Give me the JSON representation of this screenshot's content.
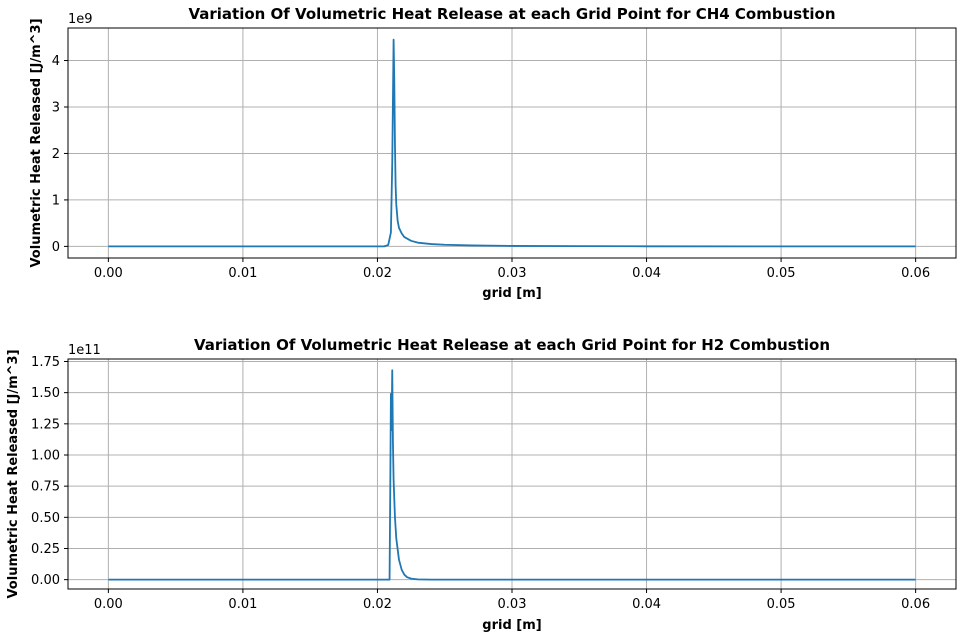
{
  "chart_data": [
    {
      "type": "line",
      "title": "Variation Of Volumetric Heat Release at each Grid Point for CH4 Combustion",
      "xlabel": "grid [m]",
      "ylabel": "Volumetric Heat Released [J/m^3]",
      "y_offset_label": "1e9",
      "xlim": [
        -0.003,
        0.063
      ],
      "ylim": [
        -0.25,
        4.7
      ],
      "xticks": [
        0.0,
        0.01,
        0.02,
        0.03,
        0.04,
        0.05,
        0.06
      ],
      "xtick_labels": [
        "0.00",
        "0.01",
        "0.02",
        "0.03",
        "0.04",
        "0.05",
        "0.06"
      ],
      "yticks": [
        0,
        1,
        2,
        3,
        4
      ],
      "ytick_labels": [
        "0",
        "1",
        "2",
        "3",
        "4"
      ],
      "grid": true,
      "color": "#1f77b4",
      "series": [
        {
          "x": [
            0.0,
            0.015,
            0.0205,
            0.0208,
            0.021,
            0.0211,
            0.0212,
            0.02125,
            0.0213,
            0.02135,
            0.0214,
            0.0215,
            0.0216,
            0.0218,
            0.022,
            0.0225,
            0.023,
            0.024,
            0.025,
            0.027,
            0.03,
            0.035,
            0.04,
            0.05,
            0.06
          ],
          "y": [
            0.0,
            0.0,
            0.0,
            0.03,
            0.3,
            1.8,
            4.45,
            3.6,
            2.2,
            1.3,
            0.9,
            0.55,
            0.4,
            0.28,
            0.2,
            0.12,
            0.08,
            0.05,
            0.035,
            0.02,
            0.01,
            0.005,
            0.002,
            0.0,
            0.0
          ]
        }
      ]
    },
    {
      "type": "line",
      "title": "Variation Of Volumetric Heat Release at each Grid Point for H2 Combustion",
      "xlabel": "grid [m]",
      "ylabel": "Volumetric Heat Released [J/m^3]",
      "y_offset_label": "1e11",
      "xlim": [
        -0.003,
        0.063
      ],
      "ylim": [
        -0.075,
        1.77
      ],
      "xticks": [
        0.0,
        0.01,
        0.02,
        0.03,
        0.04,
        0.05,
        0.06
      ],
      "xtick_labels": [
        "0.00",
        "0.01",
        "0.02",
        "0.03",
        "0.04",
        "0.05",
        "0.06"
      ],
      "yticks": [
        0.0,
        0.25,
        0.5,
        0.75,
        1.0,
        1.25,
        1.5,
        1.75
      ],
      "ytick_labels": [
        "0.00",
        "0.25",
        "0.50",
        "0.75",
        "1.00",
        "1.25",
        "1.50",
        "1.75"
      ],
      "grid": true,
      "color": "#1f77b4",
      "series": [
        {
          "x": [
            0.0,
            0.015,
            0.0209,
            0.02095,
            0.021,
            0.02105,
            0.0211,
            0.02115,
            0.0212,
            0.0213,
            0.0214,
            0.0216,
            0.0218,
            0.022,
            0.0222,
            0.0225,
            0.023,
            0.024,
            0.03,
            0.04,
            0.05,
            0.06
          ],
          "y": [
            0.0,
            0.0,
            0.0,
            0.7,
            1.49,
            1.2,
            1.68,
            1.1,
            0.8,
            0.5,
            0.33,
            0.16,
            0.08,
            0.04,
            0.02,
            0.008,
            0.002,
            0.0,
            0.0,
            0.0,
            0.0,
            0.0
          ]
        }
      ]
    }
  ]
}
